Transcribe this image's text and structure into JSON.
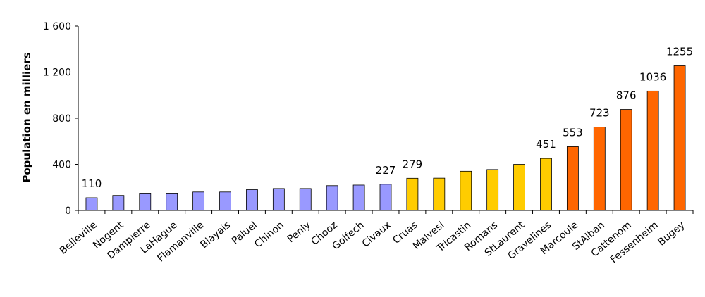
{
  "chart_data": {
    "type": "bar",
    "title": "",
    "xlabel": "",
    "ylabel": "Population en milliers",
    "ylim": [
      0,
      1600
    ],
    "yticks": [
      0,
      400,
      800,
      1200,
      1600
    ],
    "ytick_labels": [
      "0",
      "400",
      "800",
      "1 200",
      "1 600"
    ],
    "grid": false,
    "categories": [
      "Belleville",
      "Nogent",
      "Dampierre",
      "LaHague",
      "Flamanville",
      "Blayais",
      "Paluel",
      "Chinon",
      "Penly",
      "Chooz",
      "Golfech",
      "Civaux",
      "Cruas",
      "Malvesi",
      "Tricastin",
      "Romans",
      "StLaurent",
      "Gravelines",
      "Marcoule",
      "StAlban",
      "Cattenom",
      "Fessenheim",
      "Bugey"
    ],
    "values": [
      110,
      130,
      150,
      150,
      160,
      160,
      180,
      190,
      190,
      215,
      220,
      227,
      279,
      280,
      340,
      355,
      400,
      451,
      553,
      723,
      876,
      1036,
      1255
    ],
    "data_labels": [
      "110",
      "",
      "",
      "",
      "",
      "",
      "",
      "",
      "",
      "",
      "",
      "227",
      "279",
      "",
      "",
      "",
      "",
      "451",
      "553",
      "723",
      "876",
      "1036",
      "1255"
    ],
    "bar_colors": [
      "#9999ff",
      "#9999ff",
      "#9999ff",
      "#9999ff",
      "#9999ff",
      "#9999ff",
      "#9999ff",
      "#9999ff",
      "#9999ff",
      "#9999ff",
      "#9999ff",
      "#9999ff",
      "#ffcc00",
      "#ffcc00",
      "#ffcc00",
      "#ffcc00",
      "#ffcc00",
      "#ffcc00",
      "#ff6600",
      "#ff6600",
      "#ff6600",
      "#ff6600",
      "#ff6600"
    ],
    "bar_outline_color": "#000000"
  }
}
